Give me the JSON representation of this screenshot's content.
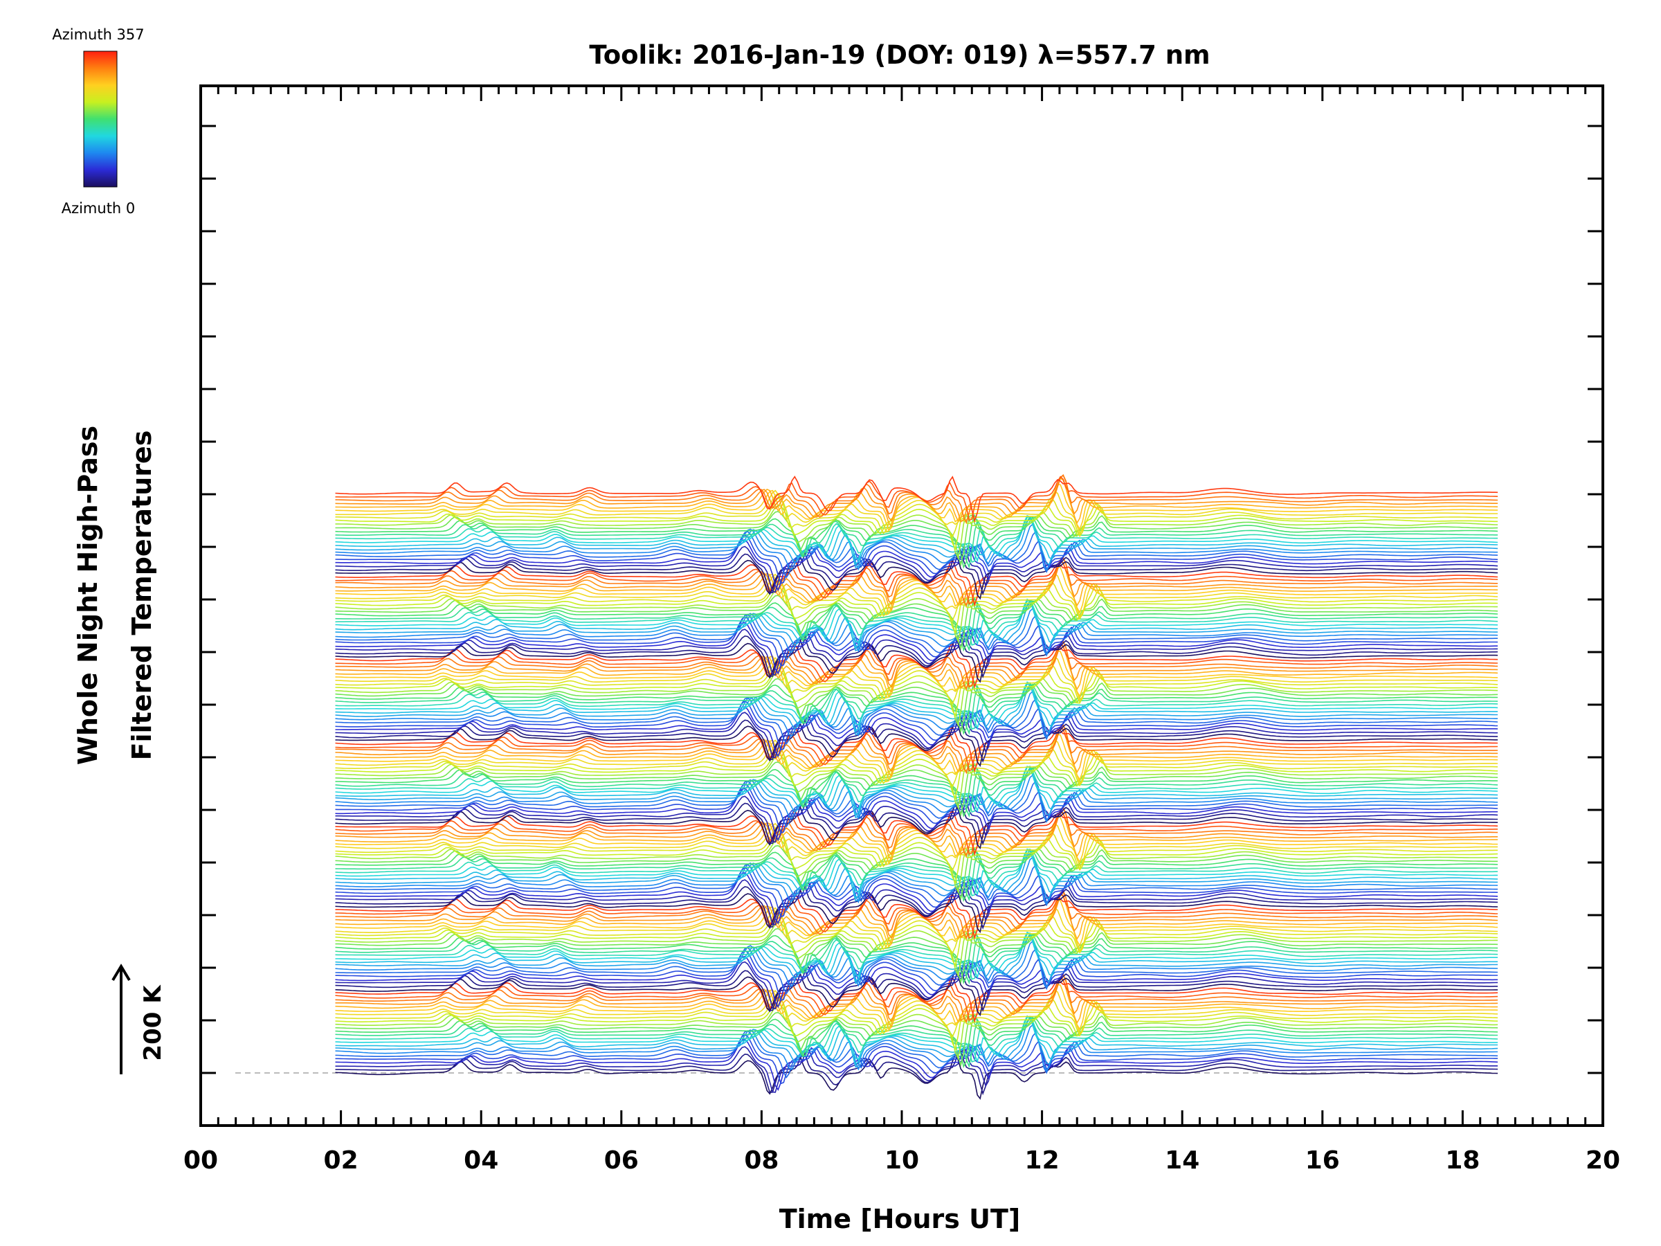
{
  "chart_data": {
    "type": "line",
    "title": "Toolik: 2016-Jan-19 (DOY: 019) λ=557.7 nm",
    "xlabel": "Time [Hours UT]",
    "ylabel_line1": "Whole Night High-Pass",
    "ylabel_line2": "Filtered Temperatures",
    "xlim": [
      0,
      20
    ],
    "x_ticks": [
      "00",
      "02",
      "04",
      "06",
      "08",
      "10",
      "12",
      "14",
      "16",
      "18",
      "20"
    ],
    "x_tick_values": [
      0,
      2,
      4,
      6,
      8,
      10,
      12,
      14,
      16,
      18,
      20
    ],
    "data_time_range": [
      1.92,
      18.5
    ],
    "scale_bar": {
      "label": "200 K",
      "value_K": 200
    },
    "colorbar": {
      "top_label": "Azimuth 357",
      "bottom_label": "Azimuth 0",
      "min": 0,
      "max": 357,
      "colors": [
        "#1b0f5e",
        "#2b2bd6",
        "#1e88f0",
        "#20d8e0",
        "#40e070",
        "#c8f020",
        "#ffd020",
        "#ff8010",
        "#ff2010"
      ]
    },
    "stack": {
      "groups": 7,
      "traces_per_group": 24,
      "azimuth_step_deg": 15,
      "trace_spacing_K": 12.5
    },
    "events": [
      {
        "time_h": 3.7,
        "amp": 0.7,
        "width_h": 0.12
      },
      {
        "time_h": 4.2,
        "amp": 0.6,
        "width_h": 0.12
      },
      {
        "time_h": 5.3,
        "amp": 0.5,
        "width_h": 0.15
      },
      {
        "time_h": 7.0,
        "amp": 0.4,
        "width_h": 0.2
      },
      {
        "time_h": 8.0,
        "amp": 1.6,
        "width_h": 0.14
      },
      {
        "time_h": 8.35,
        "amp": -1.8,
        "width_h": 0.08
      },
      {
        "time_h": 8.6,
        "amp": 1.2,
        "width_h": 0.07
      },
      {
        "time_h": 8.85,
        "amp": -1.2,
        "width_h": 0.12
      },
      {
        "time_h": 9.3,
        "amp": 1.1,
        "width_h": 0.1
      },
      {
        "time_h": 9.6,
        "amp": -1.4,
        "width_h": 0.07
      },
      {
        "time_h": 10.0,
        "amp": 0.9,
        "width_h": 0.25
      },
      {
        "time_h": 10.6,
        "amp": -1.0,
        "width_h": 0.15
      },
      {
        "time_h": 10.9,
        "amp": 1.3,
        "width_h": 0.06
      },
      {
        "time_h": 11.0,
        "amp": -1.8,
        "width_h": 0.06
      },
      {
        "time_h": 11.5,
        "amp": -0.8,
        "width_h": 0.1
      },
      {
        "time_h": 12.05,
        "amp": 1.9,
        "width_h": 0.1
      },
      {
        "time_h": 12.3,
        "amp": -1.3,
        "width_h": 0.07
      },
      {
        "time_h": 12.6,
        "amp": 1.0,
        "width_h": 0.08
      },
      {
        "time_h": 14.8,
        "amp": 0.35,
        "width_h": 0.4
      }
    ]
  }
}
